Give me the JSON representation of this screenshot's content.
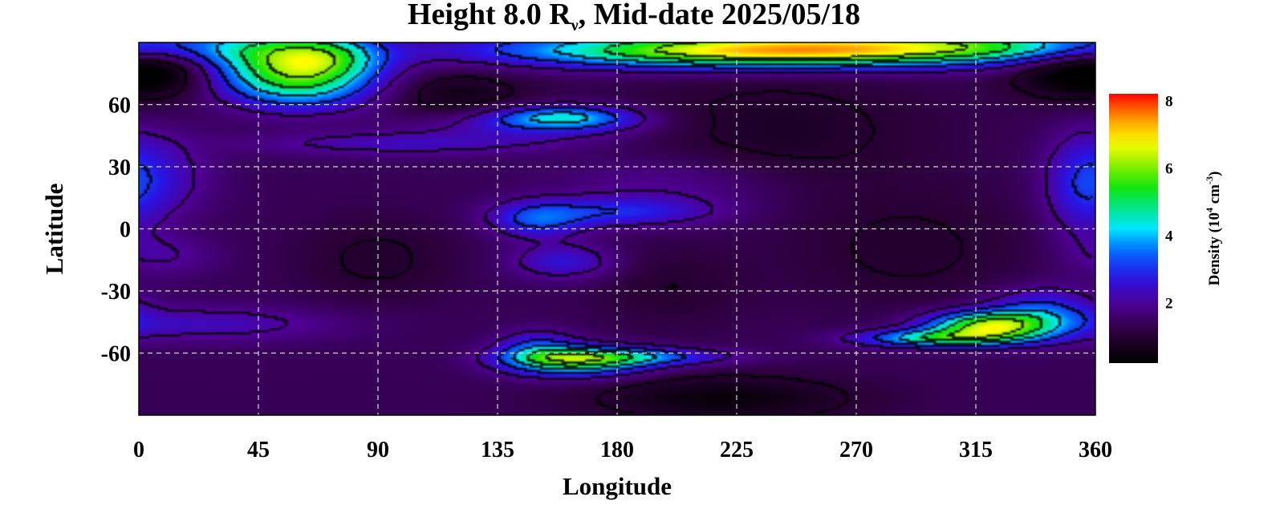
{
  "chart_data": {
    "type": "heatmap",
    "title_main": "Height 8.0 R",
    "title_sub": "ν",
    "title_rest": ", Mid-date 2025/05/18",
    "xlabel": "Longitude",
    "ylabel": "Latitude",
    "xlim": [
      0,
      360
    ],
    "ylim": [
      -90,
      90
    ],
    "xticks": [
      0,
      45,
      90,
      135,
      180,
      225,
      270,
      315,
      360
    ],
    "yticks": [
      60,
      30,
      0,
      -30,
      -60
    ],
    "grid": true,
    "colorbar": {
      "label_pre": "Density (10",
      "label_sup1": "4",
      "label_mid": " cm",
      "label_sup2": "-3",
      "label_post": ")",
      "range": [
        0.2,
        8.2
      ],
      "ticks": [
        2,
        4,
        6,
        8
      ],
      "placement": "right"
    },
    "background_density": 1.4,
    "features": [
      {
        "lon": 12,
        "lat": 78,
        "dlon": 16,
        "dlat": 10,
        "amp": -1.3
      },
      {
        "lon": 350,
        "lat": 78,
        "dlon": 16,
        "dlat": 10,
        "amp": -1.3
      },
      {
        "lon": 55,
        "lat": 80,
        "dlon": 22,
        "dlat": 11,
        "amp": 3.6
      },
      {
        "lon": 72,
        "lat": 82,
        "dlon": 14,
        "dlat": 7,
        "amp": 1.5
      },
      {
        "lon": 62,
        "lat": 68,
        "dlon": 18,
        "dlat": 8,
        "amp": 1.6
      },
      {
        "lon": 270,
        "lat": 88,
        "dlon": 80,
        "dlat": 6,
        "amp": 4.8
      },
      {
        "lon": 225,
        "lat": 84,
        "dlon": 55,
        "dlat": 5,
        "amp": 2.2
      },
      {
        "lon": 160,
        "lat": 54,
        "dlon": 18,
        "dlat": 4,
        "amp": 2.4
      },
      {
        "lon": 150,
        "lat": 50,
        "dlon": 30,
        "dlat": 5,
        "amp": 1.0
      },
      {
        "lon": 100,
        "lat": 41,
        "dlon": 40,
        "dlat": 4,
        "amp": 0.9
      },
      {
        "lon": 150,
        "lat": 4,
        "dlon": 12,
        "dlat": 6,
        "amp": 1.6
      },
      {
        "lon": 180,
        "lat": 8,
        "dlon": 25,
        "dlat": 5,
        "amp": 1.4
      },
      {
        "lon": 160,
        "lat": -16,
        "dlon": 14,
        "dlat": 6,
        "amp": 1.2
      },
      {
        "lon": 200,
        "lat": 22,
        "dlon": 30,
        "dlat": 10,
        "amp": 0.6
      },
      {
        "lon": 8,
        "lat": 25,
        "dlon": 14,
        "dlat": 14,
        "amp": 0.9
      },
      {
        "lon": 355,
        "lat": 20,
        "dlon": 10,
        "dlat": 18,
        "amp": 1.2
      },
      {
        "lon": 10,
        "lat": -13,
        "dlon": 14,
        "dlat": 7,
        "amp": 0.6
      },
      {
        "lon": 25,
        "lat": -46,
        "dlon": 35,
        "dlat": 6,
        "amp": 0.9
      },
      {
        "lon": 165,
        "lat": -64,
        "dlon": 18,
        "dlat": 5,
        "amp": 3.4
      },
      {
        "lon": 185,
        "lat": -62,
        "dlon": 25,
        "dlat": 3,
        "amp": 2.0
      },
      {
        "lon": 150,
        "lat": -58,
        "dlon": 10,
        "dlat": 6,
        "amp": 1.5
      },
      {
        "lon": 320,
        "lat": -47,
        "dlon": 16,
        "dlat": 5,
        "amp": 4.6
      },
      {
        "lon": 300,
        "lat": -53,
        "dlon": 20,
        "dlat": 3,
        "amp": 3.0
      },
      {
        "lon": 340,
        "lat": -40,
        "dlon": 14,
        "dlat": 8,
        "amp": 1.6
      },
      {
        "lon": 120,
        "lat": 65,
        "dlon": 18,
        "dlat": 8,
        "amp": -0.8
      },
      {
        "lon": 240,
        "lat": 48,
        "dlon": 40,
        "dlat": 20,
        "amp": -0.6
      },
      {
        "lon": 90,
        "lat": -15,
        "dlon": 20,
        "dlat": 14,
        "amp": -0.5
      },
      {
        "lon": 290,
        "lat": -10,
        "dlon": 30,
        "dlat": 20,
        "amp": -0.5
      },
      {
        "lon": 220,
        "lat": -82,
        "dlon": 35,
        "dlat": 8,
        "amp": -1.0
      },
      {
        "lon": 200,
        "lat": -28,
        "dlon": 20,
        "dlat": 14,
        "amp": -0.4
      }
    ]
  }
}
